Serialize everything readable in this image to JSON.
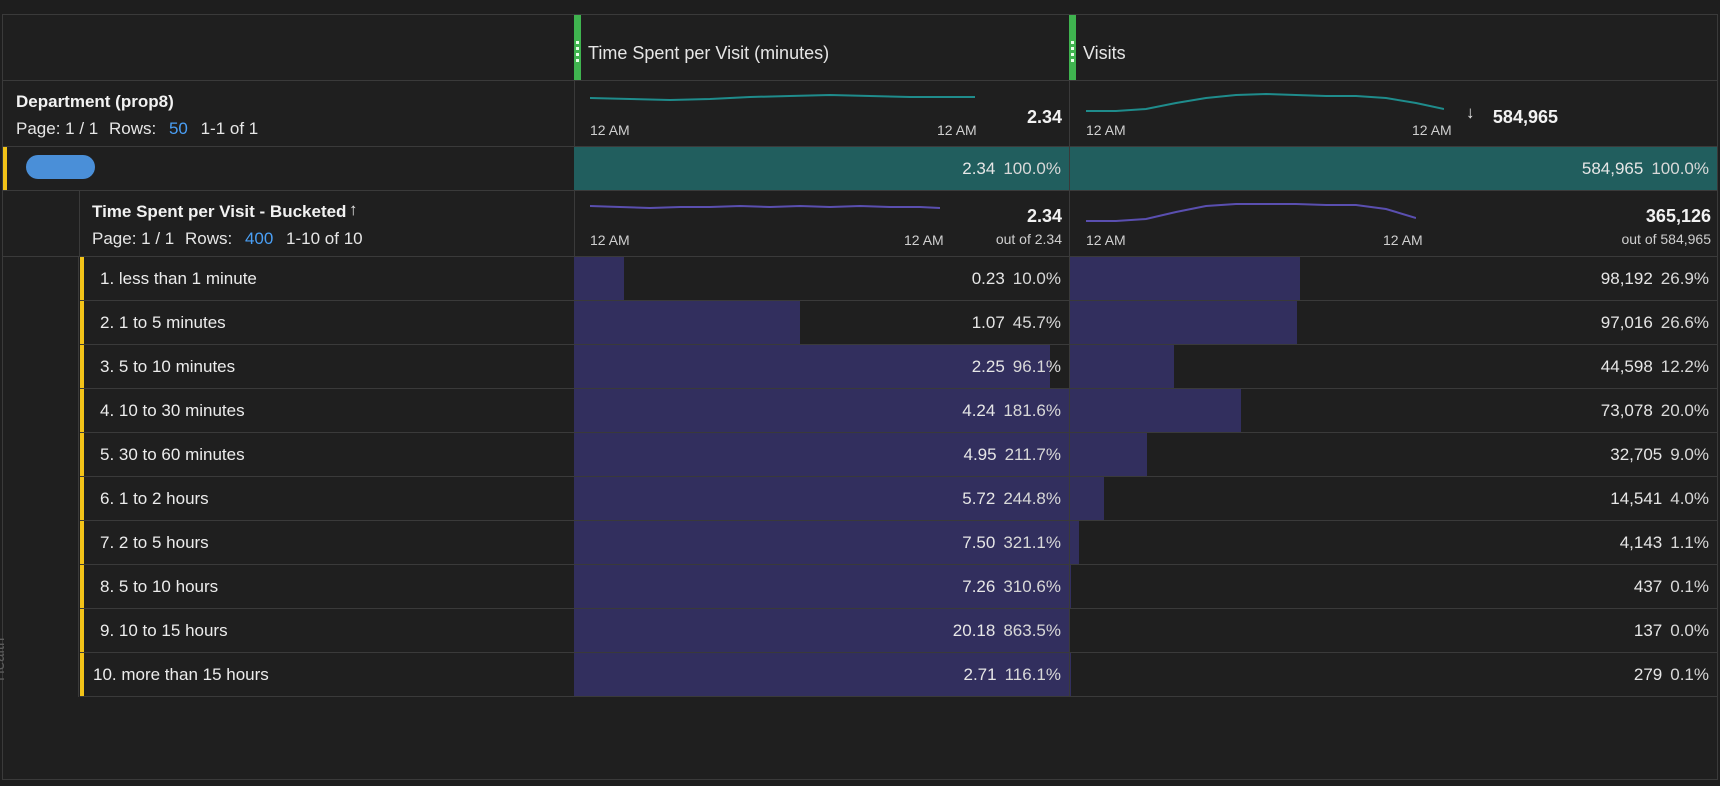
{
  "columns": {
    "metric1_title": "Time Spent per Visit (minutes)",
    "metric2_title": "Visits"
  },
  "department": {
    "title": "Department (prop8)",
    "page_label": "Page: 1 / 1",
    "rows_label": "Rows:",
    "rows_value": "50",
    "range": "1-1 of 1",
    "axis_start": "12 AM",
    "axis_end": "12 AM",
    "metric1_total": "2.34",
    "metric2_total": "584,965",
    "sort_icon": "arrow-down-icon"
  },
  "department_row": {
    "metric1_value": "2.34",
    "metric1_pct": "100.0%",
    "metric2_value": "584,965",
    "metric2_pct": "100.0%"
  },
  "breakdown": {
    "title": "Time Spent per Visit - Bucketed",
    "sort_icon": "arrow-up-icon",
    "page_label": "Page: 1 / 1",
    "rows_label": "Rows:",
    "rows_value": "400",
    "range": "1-10 of 10",
    "axis_start": "12 AM",
    "axis_end": "12 AM",
    "metric1_total": "2.34",
    "metric1_outof": "out of 2.34",
    "metric2_total": "365,126",
    "metric2_outof": "out of 584,965",
    "side_label": "Health"
  },
  "rows": [
    {
      "label": "1. less than 1 minute",
      "m1": "0.23",
      "m1pct": "10.0%",
      "m1fill": 0.1,
      "m2": "98,192",
      "m2pct": "26.9%",
      "m2fill": 0.269
    },
    {
      "label": "2. 1 to 5 minutes",
      "m1": "1.07",
      "m1pct": "45.7%",
      "m1fill": 0.457,
      "m2": "97,016",
      "m2pct": "26.6%",
      "m2fill": 0.266
    },
    {
      "label": "3. 5 to 10 minutes",
      "m1": "2.25",
      "m1pct": "96.1%",
      "m1fill": 0.961,
      "m2": "44,598",
      "m2pct": "12.2%",
      "m2fill": 0.122
    },
    {
      "label": "4. 10 to 30 minutes",
      "m1": "4.24",
      "m1pct": "181.6%",
      "m1fill": 1,
      "m2": "73,078",
      "m2pct": "20.0%",
      "m2fill": 0.2
    },
    {
      "label": "5. 30 to 60 minutes",
      "m1": "4.95",
      "m1pct": "211.7%",
      "m1fill": 1,
      "m2": "32,705",
      "m2pct": "9.0%",
      "m2fill": 0.09
    },
    {
      "label": "6. 1 to 2 hours",
      "m1": "5.72",
      "m1pct": "244.8%",
      "m1fill": 1,
      "m2": "14,541",
      "m2pct": "4.0%",
      "m2fill": 0.04
    },
    {
      "label": "7. 2 to 5 hours",
      "m1": "7.50",
      "m1pct": "321.1%",
      "m1fill": 1,
      "m2": "4,143",
      "m2pct": "1.1%",
      "m2fill": 0.011
    },
    {
      "label": "8. 5 to 10 hours",
      "m1": "7.26",
      "m1pct": "310.6%",
      "m1fill": 1,
      "m2": "437",
      "m2pct": "0.1%",
      "m2fill": 0.001
    },
    {
      "label": "9. 10 to 15 hours",
      "m1": "20.18",
      "m1pct": "863.5%",
      "m1fill": 1,
      "m2": "137",
      "m2pct": "0.0%",
      "m2fill": 0
    },
    {
      "label": "10. more than 15 hours",
      "m1": "2.71",
      "m1pct": "116.1%",
      "m1fill": 1,
      "m2": "279",
      "m2pct": "0.1%",
      "m2fill": 0.001
    }
  ],
  "colors": {
    "bar": "#322f5e",
    "teal_row": "#215e5e",
    "sparkline_teal": "#1f8c8c",
    "sparkline_purple": "#5a4fb0",
    "accent_yellow": "#f2c318",
    "grip_green": "#3fb34f",
    "link_blue": "#4a9ff5"
  }
}
